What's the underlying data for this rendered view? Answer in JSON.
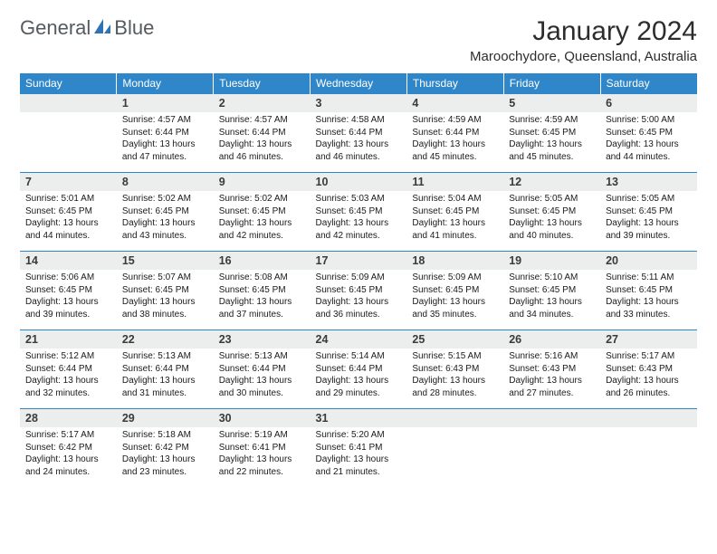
{
  "brand": {
    "name_part1": "General",
    "name_part2": "Blue"
  },
  "title": "January 2024",
  "location": "Maroochydore, Queensland, Australia",
  "theme": {
    "header_bg": "#2f87c9",
    "header_fg": "#ffffff",
    "daynum_bg": "#eceded",
    "rule_color": "#2f87c9",
    "body_bg": "#ffffff",
    "logo_gray": "#555a5f",
    "logo_blue": "#2f73b5"
  },
  "day_labels": [
    "Sunday",
    "Monday",
    "Tuesday",
    "Wednesday",
    "Thursday",
    "Friday",
    "Saturday"
  ],
  "weeks": [
    [
      null,
      {
        "n": "1",
        "sunrise": "4:57 AM",
        "sunset": "6:44 PM",
        "daylight": "13 hours and 47 minutes."
      },
      {
        "n": "2",
        "sunrise": "4:57 AM",
        "sunset": "6:44 PM",
        "daylight": "13 hours and 46 minutes."
      },
      {
        "n": "3",
        "sunrise": "4:58 AM",
        "sunset": "6:44 PM",
        "daylight": "13 hours and 46 minutes."
      },
      {
        "n": "4",
        "sunrise": "4:59 AM",
        "sunset": "6:44 PM",
        "daylight": "13 hours and 45 minutes."
      },
      {
        "n": "5",
        "sunrise": "4:59 AM",
        "sunset": "6:45 PM",
        "daylight": "13 hours and 45 minutes."
      },
      {
        "n": "6",
        "sunrise": "5:00 AM",
        "sunset": "6:45 PM",
        "daylight": "13 hours and 44 minutes."
      }
    ],
    [
      {
        "n": "7",
        "sunrise": "5:01 AM",
        "sunset": "6:45 PM",
        "daylight": "13 hours and 44 minutes."
      },
      {
        "n": "8",
        "sunrise": "5:02 AM",
        "sunset": "6:45 PM",
        "daylight": "13 hours and 43 minutes."
      },
      {
        "n": "9",
        "sunrise": "5:02 AM",
        "sunset": "6:45 PM",
        "daylight": "13 hours and 42 minutes."
      },
      {
        "n": "10",
        "sunrise": "5:03 AM",
        "sunset": "6:45 PM",
        "daylight": "13 hours and 42 minutes."
      },
      {
        "n": "11",
        "sunrise": "5:04 AM",
        "sunset": "6:45 PM",
        "daylight": "13 hours and 41 minutes."
      },
      {
        "n": "12",
        "sunrise": "5:05 AM",
        "sunset": "6:45 PM",
        "daylight": "13 hours and 40 minutes."
      },
      {
        "n": "13",
        "sunrise": "5:05 AM",
        "sunset": "6:45 PM",
        "daylight": "13 hours and 39 minutes."
      }
    ],
    [
      {
        "n": "14",
        "sunrise": "5:06 AM",
        "sunset": "6:45 PM",
        "daylight": "13 hours and 39 minutes."
      },
      {
        "n": "15",
        "sunrise": "5:07 AM",
        "sunset": "6:45 PM",
        "daylight": "13 hours and 38 minutes."
      },
      {
        "n": "16",
        "sunrise": "5:08 AM",
        "sunset": "6:45 PM",
        "daylight": "13 hours and 37 minutes."
      },
      {
        "n": "17",
        "sunrise": "5:09 AM",
        "sunset": "6:45 PM",
        "daylight": "13 hours and 36 minutes."
      },
      {
        "n": "18",
        "sunrise": "5:09 AM",
        "sunset": "6:45 PM",
        "daylight": "13 hours and 35 minutes."
      },
      {
        "n": "19",
        "sunrise": "5:10 AM",
        "sunset": "6:45 PM",
        "daylight": "13 hours and 34 minutes."
      },
      {
        "n": "20",
        "sunrise": "5:11 AM",
        "sunset": "6:45 PM",
        "daylight": "13 hours and 33 minutes."
      }
    ],
    [
      {
        "n": "21",
        "sunrise": "5:12 AM",
        "sunset": "6:44 PM",
        "daylight": "13 hours and 32 minutes."
      },
      {
        "n": "22",
        "sunrise": "5:13 AM",
        "sunset": "6:44 PM",
        "daylight": "13 hours and 31 minutes."
      },
      {
        "n": "23",
        "sunrise": "5:13 AM",
        "sunset": "6:44 PM",
        "daylight": "13 hours and 30 minutes."
      },
      {
        "n": "24",
        "sunrise": "5:14 AM",
        "sunset": "6:44 PM",
        "daylight": "13 hours and 29 minutes."
      },
      {
        "n": "25",
        "sunrise": "5:15 AM",
        "sunset": "6:43 PM",
        "daylight": "13 hours and 28 minutes."
      },
      {
        "n": "26",
        "sunrise": "5:16 AM",
        "sunset": "6:43 PM",
        "daylight": "13 hours and 27 minutes."
      },
      {
        "n": "27",
        "sunrise": "5:17 AM",
        "sunset": "6:43 PM",
        "daylight": "13 hours and 26 minutes."
      }
    ],
    [
      {
        "n": "28",
        "sunrise": "5:17 AM",
        "sunset": "6:42 PM",
        "daylight": "13 hours and 24 minutes."
      },
      {
        "n": "29",
        "sunrise": "5:18 AM",
        "sunset": "6:42 PM",
        "daylight": "13 hours and 23 minutes."
      },
      {
        "n": "30",
        "sunrise": "5:19 AM",
        "sunset": "6:41 PM",
        "daylight": "13 hours and 22 minutes."
      },
      {
        "n": "31",
        "sunrise": "5:20 AM",
        "sunset": "6:41 PM",
        "daylight": "13 hours and 21 minutes."
      },
      null,
      null,
      null
    ]
  ],
  "labels": {
    "sunrise_prefix": "Sunrise: ",
    "sunset_prefix": "Sunset: ",
    "daylight_prefix": "Daylight: "
  }
}
